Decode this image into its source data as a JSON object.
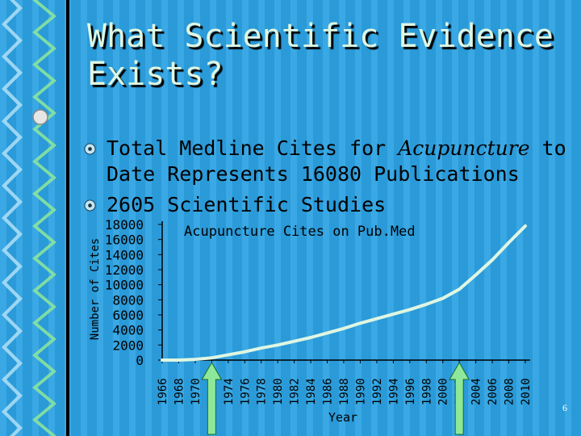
{
  "slide": {
    "title": "What Scientific Evidence Exists?",
    "bullets": [
      {
        "before": "Total Medline Cites for ",
        "emph": "Acupuncture",
        "after": " to Date Represents 16080 Publications"
      },
      {
        "text": "2605 Scientific Studies"
      }
    ],
    "page_number": "6"
  },
  "colors": {
    "background": "#2a9ad8",
    "stripe": "#3aa8e4",
    "arrow": "#8ee89a",
    "line": "#dff6e2"
  },
  "chart_data": {
    "type": "line",
    "title": "Acupuncture Cites on Pub.Med",
    "xlabel": "Year",
    "ylabel": "Number of Cites",
    "ylim": [
      0,
      18000
    ],
    "yticks": [
      0,
      2000,
      4000,
      6000,
      8000,
      10000,
      12000,
      14000,
      16000,
      18000
    ],
    "x": [
      1966,
      1968,
      1970,
      1972,
      1974,
      1976,
      1978,
      1980,
      1982,
      1984,
      1986,
      1988,
      1990,
      1992,
      1994,
      1996,
      1998,
      2000,
      2002,
      2004,
      2006,
      2008,
      2010
    ],
    "series": [
      {
        "values": [
          0,
          0,
          100,
          300,
          700,
          1100,
          1600,
          2000,
          2500,
          3000,
          3600,
          4200,
          4900,
          5500,
          6100,
          6700,
          7400,
          8200,
          9400,
          11300,
          13300,
          15600,
          17800
        ]
      }
    ],
    "arrows_at": [
      1972,
      2002
    ],
    "grid": false,
    "legend": "none"
  }
}
